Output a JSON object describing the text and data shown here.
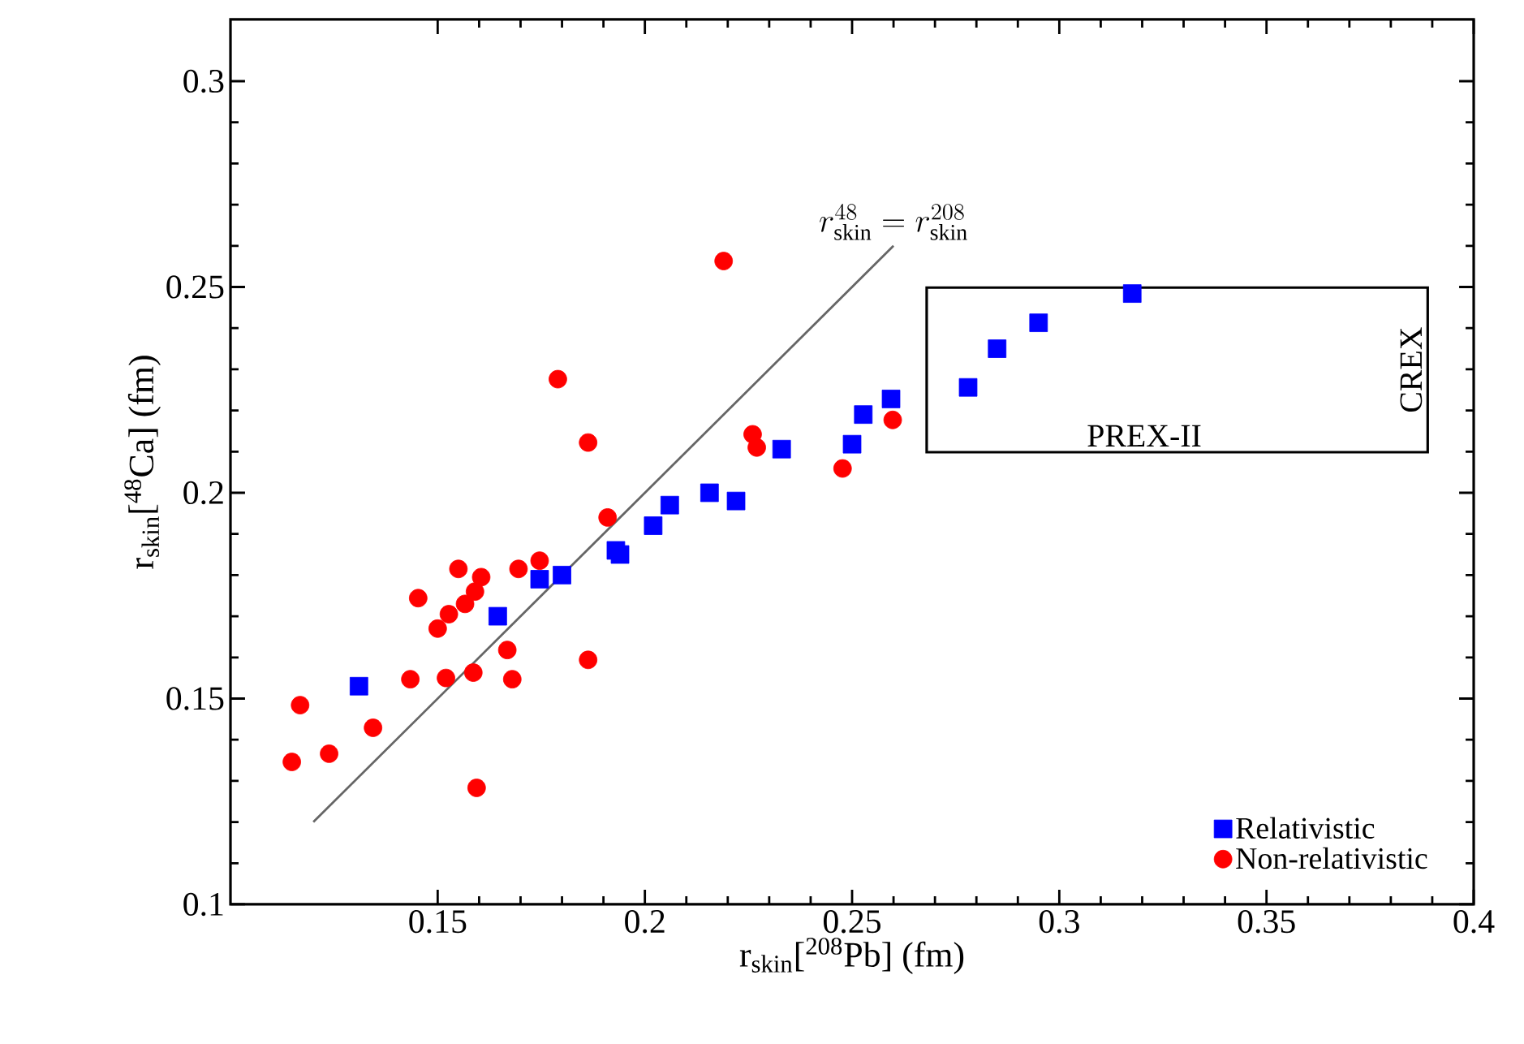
{
  "chart_data": {
    "type": "scatter",
    "xlabel": "r$_{skin}$[$^{208}$Pb] (fm)",
    "ylabel": "r$_{skin}$[$^{48}$Ca] (fm)",
    "xlim": [
      0.1,
      0.4
    ],
    "ylim": [
      0.1,
      0.315
    ],
    "xticks": [
      0.15,
      0.2,
      0.25,
      0.3,
      0.35,
      0.4
    ],
    "yticks": [
      0.1,
      0.15,
      0.2,
      0.25,
      0.3
    ],
    "legend": "bottom right",
    "grid": false,
    "series": [
      {
        "name": "Relativistic",
        "color": "#0000ff",
        "marker": "square",
        "x": [
          0.131,
          0.1645,
          0.1746,
          0.18,
          0.193,
          0.194,
          0.202,
          0.206,
          0.2156,
          0.222,
          0.233,
          0.25,
          0.2527,
          0.2594,
          0.278,
          0.285,
          0.295,
          0.3176
        ],
        "values": [
          0.153,
          0.17,
          0.179,
          0.18,
          0.186,
          0.185,
          0.192,
          0.197,
          0.2,
          0.198,
          0.2106,
          0.2118,
          0.219,
          0.2228,
          0.2256,
          0.235,
          0.2413,
          0.2484
        ]
      },
      {
        "name": "Non-relativistic",
        "color": "#ff0000",
        "marker": "circle",
        "x": [
          0.219,
          0.179,
          0.1863,
          0.226,
          0.227,
          0.2477,
          0.2598,
          0.191,
          0.1746,
          0.1695,
          0.155,
          0.1605,
          0.159,
          0.1566,
          0.1527,
          0.15,
          0.1453,
          0.1668,
          0.1863,
          0.1434,
          0.152,
          0.1586,
          0.168,
          0.1168,
          0.1148,
          0.1238,
          0.1344,
          0.1594
        ],
        "values": [
          0.2563,
          0.2276,
          0.2122,
          0.2142,
          0.211,
          0.2059,
          0.2177,
          0.194,
          0.1835,
          0.1815,
          0.1815,
          0.1795,
          0.176,
          0.173,
          0.1705,
          0.167,
          0.1744,
          0.1618,
          0.1594,
          0.1547,
          0.155,
          0.1563,
          0.1547,
          0.1484,
          0.1346,
          0.1366,
          0.1429,
          0.1283
        ]
      },
      {
        "type": "line",
        "color": "#666666",
        "marker": "none",
        "x": [
          0.12,
          0.26
        ],
        "values": [
          0.12,
          0.26
        ]
      }
    ],
    "annotations": [
      {
        "text": "r_{\\mathrm{skin}}^{48}=r_{\\mathrm{skin}}^{208}",
        "x": 0.26,
        "y": 0.26
      },
      "PREX-II",
      "CREX"
    ]
  }
}
